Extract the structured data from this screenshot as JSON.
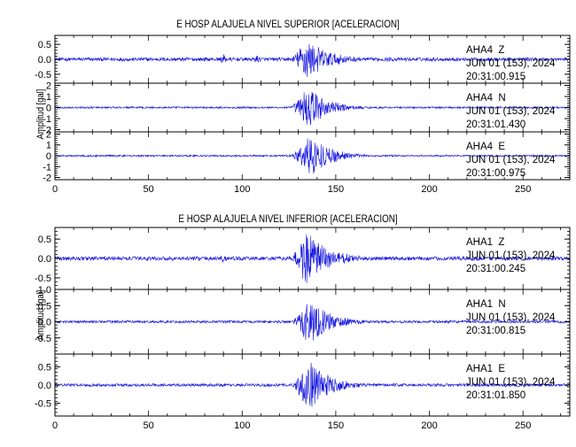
{
  "chart_data": [
    {
      "type": "line",
      "title": "E HOSP ALAJUELA NIVEL SUPERIOR [ACELERACION]",
      "ylabel": "Amplitud [gal]",
      "xlim": [
        0,
        275
      ],
      "x_ticks": [
        0,
        50,
        100,
        150,
        200,
        250
      ],
      "x_tick_labels": [
        "0",
        "50",
        "100",
        "150",
        "200",
        "250"
      ],
      "line_color": "#1010e0",
      "series": [
        {
          "name": "AHA4  Z",
          "date": "JUN 01 (153), 2024",
          "time": "20:31:00.915",
          "ylim": [
            -0.8,
            0.8
          ],
          "y_ticks": [
            -0.5,
            0.0,
            0.5
          ],
          "y_tick_labels": [
            "-0.5",
            "0.0",
            "0.5"
          ],
          "envelope": {
            "noise": 0.06,
            "peak": 0.72,
            "pre_event": [
              [
                90,
                0.18
              ],
              [
                108,
                0.14
              ]
            ],
            "event_start": 125,
            "event_peak": 134,
            "decay_end": 175
          }
        },
        {
          "name": "AHA4  N",
          "date": "JUN 01 (153), 2024",
          "time": "20:31:01.430",
          "ylim": [
            -2.2,
            2.2
          ],
          "y_ticks": [
            -2,
            -1,
            0,
            1,
            2
          ],
          "y_tick_labels": [
            "-2",
            "-1",
            "0",
            "1",
            "2"
          ],
          "envelope": {
            "noise": 0.08,
            "peak": 2.0,
            "pre_event": [],
            "event_start": 125,
            "event_peak": 135,
            "decay_end": 170
          }
        },
        {
          "name": "AHA4  E",
          "date": "JUN 01 (153), 2024",
          "time": "20:31:00.975",
          "ylim": [
            -2.2,
            2.2
          ],
          "y_ticks": [
            -2,
            -1,
            0,
            1,
            2
          ],
          "y_tick_labels": [
            "-2",
            "-1",
            "0",
            "1",
            "2"
          ],
          "envelope": {
            "noise": 0.08,
            "peak": 2.0,
            "pre_event": [],
            "event_start": 125,
            "event_peak": 136,
            "decay_end": 172
          }
        }
      ]
    },
    {
      "type": "line",
      "title": "E HOSP ALAJUELA NIVEL INFERIOR [ACELERACION]",
      "ylabel": "Amplitud [gal]",
      "xlim": [
        0,
        275
      ],
      "x_ticks": [
        0,
        50,
        100,
        150,
        200,
        250
      ],
      "x_tick_labels": [
        "0",
        "50",
        "100",
        "150",
        "200",
        "250"
      ],
      "line_color": "#1010e0",
      "series": [
        {
          "name": "AHA1  Z",
          "date": "JUN 01 (153), 2024",
          "time": "20:31:00.245",
          "ylim": [
            -0.8,
            0.8
          ],
          "y_ticks": [
            -0.5,
            0.0,
            0.5
          ],
          "y_tick_labels": [
            "-0.5",
            "0.0",
            "0.5"
          ],
          "envelope": {
            "noise": 0.05,
            "peak": 0.72,
            "pre_event": [
              [
                90,
                0.15
              ]
            ],
            "event_start": 125,
            "event_peak": 134,
            "decay_end": 175
          }
        },
        {
          "name": "AHA1  N",
          "date": "JUN 01 (153), 2024",
          "time": "20:31:00.815",
          "ylim": [
            -1.0,
            1.0
          ],
          "y_ticks": [
            -0.5,
            0.0,
            0.5,
            1.0
          ],
          "y_tick_labels": [
            "-0.5",
            "0.0",
            "0.5",
            "1.0"
          ],
          "envelope": {
            "noise": 0.04,
            "peak": 0.78,
            "pre_event": [],
            "event_start": 126,
            "event_peak": 135,
            "decay_end": 172
          }
        },
        {
          "name": "AHA1  E",
          "date": "JUN 01 (153), 2024",
          "time": "20:31:01.850",
          "ylim": [
            -0.85,
            0.85
          ],
          "y_ticks": [
            -0.5,
            0.0,
            0.5
          ],
          "y_tick_labels": [
            "-0.5",
            "0.0",
            "0.5"
          ],
          "envelope": {
            "noise": 0.04,
            "peak": 0.74,
            "pre_event": [],
            "event_start": 126,
            "event_peak": 135,
            "decay_end": 172
          }
        }
      ]
    }
  ]
}
